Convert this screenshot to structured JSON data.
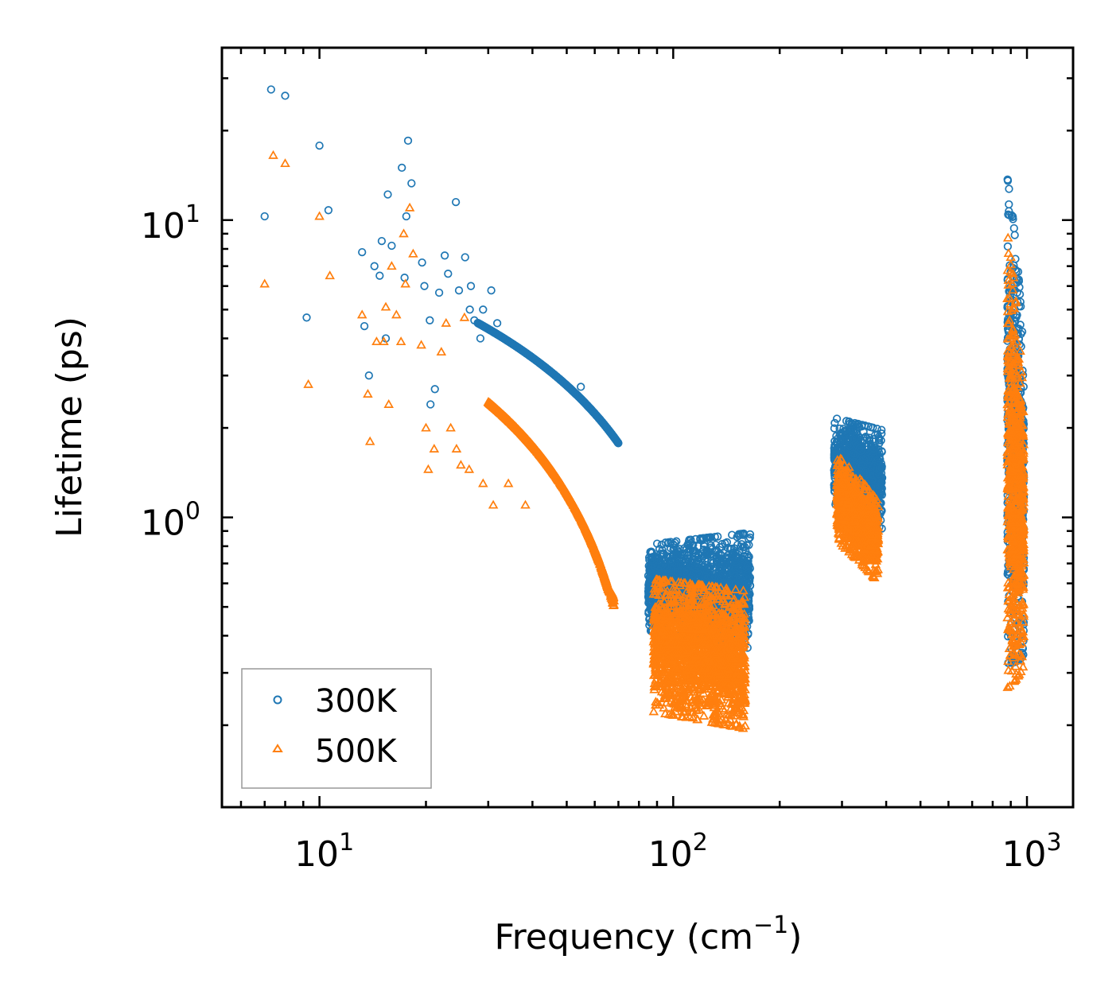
{
  "chart_data": {
    "type": "scatter",
    "x_scale": "log",
    "y_scale": "log",
    "xlabel": "Frequency (cm",
    "xlabel_sup": "−1",
    "xlabel_end": ")",
    "ylabel": "Lifetime (ps)",
    "xlim": [
      5.3,
      1350
    ],
    "ylim": [
      0.106,
      38
    ],
    "x_ticks": [
      {
        "base": "10",
        "exp": "1",
        "value": 10
      },
      {
        "base": "10",
        "exp": "2",
        "value": 100
      },
      {
        "base": "10",
        "exp": "3",
        "value": 1000
      }
    ],
    "y_ticks": [
      {
        "base": "10",
        "exp": "0",
        "value": 1
      },
      {
        "base": "10",
        "exp": "1",
        "value": 10
      }
    ],
    "legend_position": "bottom-left",
    "series": [
      {
        "name": "300K",
        "marker": "circle",
        "color": "#1f77b4",
        "points": [
          [
            7.0,
            10.3
          ],
          [
            7.3,
            27.5
          ],
          [
            8.0,
            26.2
          ],
          [
            9.2,
            4.7
          ],
          [
            10.0,
            17.8
          ],
          [
            10.6,
            10.8
          ],
          [
            13.2,
            7.8
          ],
          [
            13.4,
            4.4
          ],
          [
            13.8,
            3.0
          ],
          [
            14.3,
            7.0
          ],
          [
            14.8,
            6.5
          ],
          [
            15.0,
            8.5
          ],
          [
            15.4,
            4.0
          ],
          [
            15.6,
            12.2
          ],
          [
            16.0,
            8.2
          ],
          [
            17.1,
            15.0
          ],
          [
            17.4,
            6.4
          ],
          [
            17.6,
            10.3
          ],
          [
            17.8,
            18.5
          ],
          [
            18.2,
            13.3
          ],
          [
            19.5,
            7.2
          ],
          [
            19.8,
            6.0
          ],
          [
            20.5,
            4.6
          ],
          [
            20.6,
            2.4
          ],
          [
            21.2,
            2.7
          ],
          [
            21.8,
            5.7
          ],
          [
            22.6,
            7.6
          ],
          [
            23.1,
            6.6
          ],
          [
            24.3,
            11.5
          ],
          [
            24.8,
            5.8
          ],
          [
            25.8,
            7.5
          ],
          [
            26.6,
            5.0
          ],
          [
            26.8,
            6.0
          ],
          [
            27.4,
            4.6
          ],
          [
            28.5,
            4.0
          ],
          [
            29.0,
            5.0
          ],
          [
            30.6,
            5.8
          ],
          [
            31.8,
            4.5
          ],
          [
            54.8,
            2.75
          ]
        ],
        "clusters": [
          {
            "x": [
              28,
              70
            ],
            "y_start": [
              4.0,
              1.8
            ],
            "y_end": [
              1.6,
              0.8
            ],
            "n": 1400
          },
          {
            "x": [
              85,
              165
            ],
            "y_start": [
              0.45,
              0.75
            ],
            "y_end": [
              0.4,
              0.8
            ],
            "n": 1800
          },
          {
            "x": [
              285,
              390
            ],
            "y_start": [
              1.2,
              2.0
            ],
            "y_end": [
              1.0,
              1.8
            ],
            "n": 900
          },
          {
            "x": [
              880,
              980
            ],
            "y_start": [
              0.5,
              9.0
            ],
            "y_end": [
              0.45,
              2.5
            ],
            "n": 700
          }
        ]
      },
      {
        "name": "500K",
        "marker": "triangle",
        "color": "#ff7f0e",
        "points": [
          [
            7.0,
            6.1
          ],
          [
            7.4,
            16.5
          ],
          [
            8.0,
            15.5
          ],
          [
            9.3,
            2.8
          ],
          [
            10.0,
            10.3
          ],
          [
            10.7,
            6.5
          ],
          [
            13.2,
            4.8
          ],
          [
            13.7,
            2.6
          ],
          [
            13.9,
            1.8
          ],
          [
            14.5,
            3.9
          ],
          [
            15.2,
            3.9
          ],
          [
            15.4,
            5.1
          ],
          [
            15.7,
            2.4
          ],
          [
            16.0,
            7.0
          ],
          [
            16.5,
            4.8
          ],
          [
            17.0,
            3.9
          ],
          [
            17.3,
            9.0
          ],
          [
            17.5,
            6.1
          ],
          [
            18.0,
            11.0
          ],
          [
            18.4,
            7.7
          ],
          [
            19.4,
            3.8
          ],
          [
            20.0,
            2.0
          ],
          [
            20.3,
            1.45
          ],
          [
            21.1,
            1.7
          ],
          [
            22.1,
            3.6
          ],
          [
            22.8,
            4.5
          ],
          [
            23.5,
            2.0
          ],
          [
            24.4,
            1.7
          ],
          [
            25.1,
            1.5
          ],
          [
            25.7,
            4.7
          ],
          [
            26.5,
            1.45
          ],
          [
            29.0,
            1.3
          ],
          [
            31.0,
            1.1
          ],
          [
            34.2,
            1.3
          ],
          [
            38.2,
            1.1
          ],
          [
            129.5,
            0.21
          ]
        ],
        "clusters": [
          {
            "x": [
              30,
              68
            ],
            "y_start": [
              2.2,
              1.1
            ],
            "y_end": [
              0.5,
              0.55
            ],
            "n": 1400
          },
          {
            "x": [
              88,
              160
            ],
            "y_start": [
              0.25,
              0.55
            ],
            "y_end": [
              0.22,
              0.5
            ],
            "n": 1800
          },
          {
            "x": [
              290,
              380
            ],
            "y_start": [
              0.9,
              1.5
            ],
            "y_end": [
              0.65,
              1.05
            ],
            "n": 900
          },
          {
            "x": [
              880,
              980
            ],
            "y_start": [
              0.4,
              6.0
            ],
            "y_end": [
              0.4,
              1.8
            ],
            "n": 700
          }
        ]
      }
    ]
  }
}
